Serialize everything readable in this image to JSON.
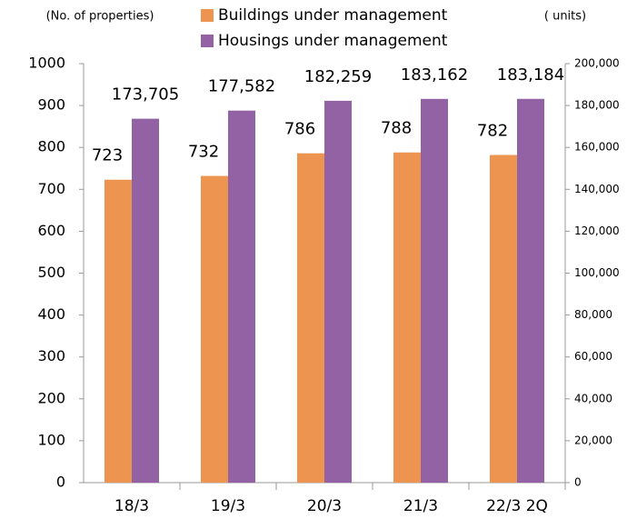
{
  "chart_data": {
    "type": "bar",
    "categories": [
      "18/3",
      "19/3",
      "20/3",
      "21/3",
      "22/3 2Q"
    ],
    "y_label": "(No. of properties)",
    "y2_label": "( units)",
    "series": [
      {
        "name": "Buildings under management",
        "color": "#ed9550",
        "values": [
          723,
          732,
          786,
          788,
          782
        ]
      },
      {
        "name": "Housings under management",
        "color": "#9262a5",
        "axis": "y2",
        "values": [
          173705,
          177582,
          182259,
          183162,
          183184
        ],
        "value_labels": [
          "173,705",
          "177,582",
          "182,259",
          "183,162",
          "183,184"
        ]
      }
    ],
    "ylim": [
      0,
      1000
    ],
    "yticks": [
      0,
      100,
      200,
      300,
      400,
      500,
      600,
      700,
      800,
      900,
      1000
    ],
    "y2lim": [
      0,
      200000
    ],
    "y2ticks": [
      0,
      {
        "value": 20000,
        "label": "20,000"
      },
      {
        "value": 40000,
        "label": "40,000"
      },
      {
        "value": 60000,
        "label": "60,000"
      },
      {
        "value": 80000,
        "label": "80,000"
      },
      {
        "value": 100000,
        "label": "100,000"
      },
      {
        "value": 120000,
        "label": "120,000"
      },
      {
        "value": 140000,
        "label": "140,000"
      },
      {
        "value": 160000,
        "label": "160,000"
      },
      {
        "value": 180000,
        "label": "180,000"
      },
      {
        "value": 200000,
        "label": "200,000"
      }
    ],
    "grid": false,
    "legend": "top"
  }
}
